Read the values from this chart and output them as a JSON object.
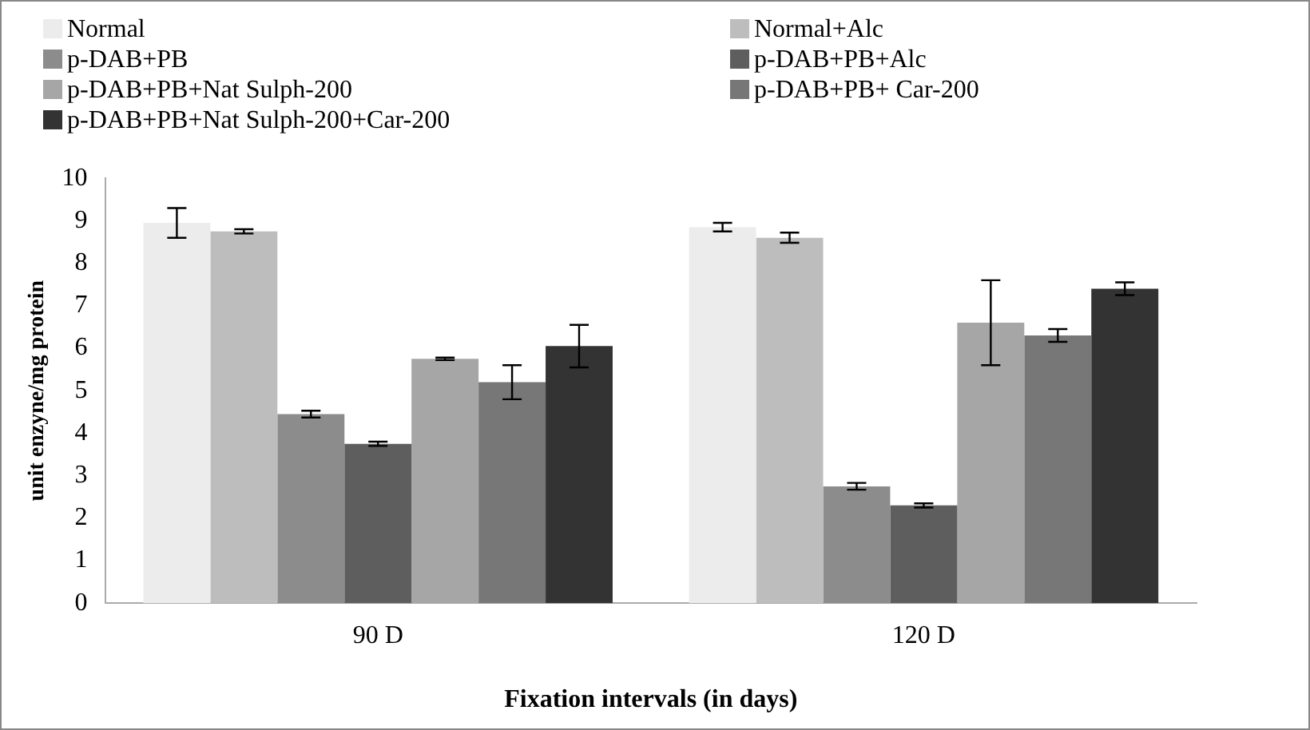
{
  "chart_data": {
    "type": "bar",
    "xlabel": "Fixation intervals (in days)",
    "ylabel": "unit enzyne/mg protein",
    "categories": [
      "90 D",
      "120 D"
    ],
    "series": [
      {
        "name": "Normal",
        "color": "#ececec",
        "values": [
          8.95,
          8.85
        ],
        "errors": [
          0.35,
          0.1
        ]
      },
      {
        "name": "Normal+Alc",
        "color": "#bdbdbd",
        "values": [
          8.75,
          8.6
        ],
        "errors": [
          0.05,
          0.12
        ]
      },
      {
        "name": "p-DAB+PB",
        "color": "#8c8c8c",
        "values": [
          4.45,
          2.75
        ],
        "errors": [
          0.08,
          0.08
        ]
      },
      {
        "name": "p-DAB+PB+Alc",
        "color": "#5e5e5e",
        "values": [
          3.75,
          2.3
        ],
        "errors": [
          0.05,
          0.05
        ]
      },
      {
        "name": "p-DAB+PB+Nat Sulph-200",
        "color": "#a6a6a6",
        "values": [
          5.75,
          6.6
        ],
        "errors": [
          0.03,
          1.0
        ]
      },
      {
        "name": "p-DAB+PB+ Car-200",
        "color": "#777777",
        "values": [
          5.2,
          6.3
        ],
        "errors": [
          0.4,
          0.15
        ]
      },
      {
        "name": "p-DAB+PB+Nat Sulph-200+Car-200",
        "color": "#333333",
        "values": [
          6.05,
          7.4
        ],
        "errors": [
          0.5,
          0.15
        ]
      }
    ],
    "ylim": [
      0,
      10
    ],
    "yticks": [
      0,
      1,
      2,
      3,
      4,
      5,
      6,
      7,
      8,
      9,
      10
    ],
    "grid": false,
    "legend": "top"
  }
}
